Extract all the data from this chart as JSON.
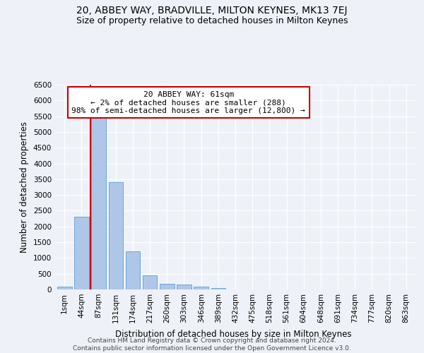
{
  "title": "20, ABBEY WAY, BRADVILLE, MILTON KEYNES, MK13 7EJ",
  "subtitle": "Size of property relative to detached houses in Milton Keynes",
  "xlabel": "Distribution of detached houses by size in Milton Keynes",
  "ylabel": "Number of detached properties",
  "footer_line1": "Contains HM Land Registry data © Crown copyright and database right 2024.",
  "footer_line2": "Contains public sector information licensed under the Open Government Licence v3.0.",
  "bar_color": "#aec6e8",
  "bar_edge_color": "#5a9fd4",
  "annotation_box_color": "#cc0000",
  "annotation_line1": "20 ABBEY WAY: 61sqm",
  "annotation_line2": "← 2% of detached houses are smaller (288)",
  "annotation_line3": "98% of semi-detached houses are larger (12,800) →",
  "vline_x": 1.5,
  "vline_color": "#cc0000",
  "categories": [
    "1sqm",
    "44sqm",
    "87sqm",
    "131sqm",
    "174sqm",
    "217sqm",
    "260sqm",
    "303sqm",
    "346sqm",
    "389sqm",
    "432sqm",
    "475sqm",
    "518sqm",
    "561sqm",
    "604sqm",
    "648sqm",
    "691sqm",
    "734sqm",
    "777sqm",
    "820sqm",
    "863sqm"
  ],
  "values": [
    80,
    2300,
    5450,
    3400,
    1200,
    450,
    190,
    155,
    95,
    50,
    0,
    0,
    0,
    0,
    0,
    0,
    0,
    0,
    0,
    0,
    0
  ],
  "ylim": [
    0,
    6500
  ],
  "yticks": [
    0,
    500,
    1000,
    1500,
    2000,
    2500,
    3000,
    3500,
    4000,
    4500,
    5000,
    5500,
    6000,
    6500
  ],
  "background_color": "#eef2f8",
  "plot_bg_color": "#eef2f8",
  "grid_color": "#ffffff",
  "title_fontsize": 10,
  "subtitle_fontsize": 9,
  "axis_label_fontsize": 8.5,
  "tick_fontsize": 7.5,
  "footer_fontsize": 6.5,
  "annotation_fontsize": 8
}
